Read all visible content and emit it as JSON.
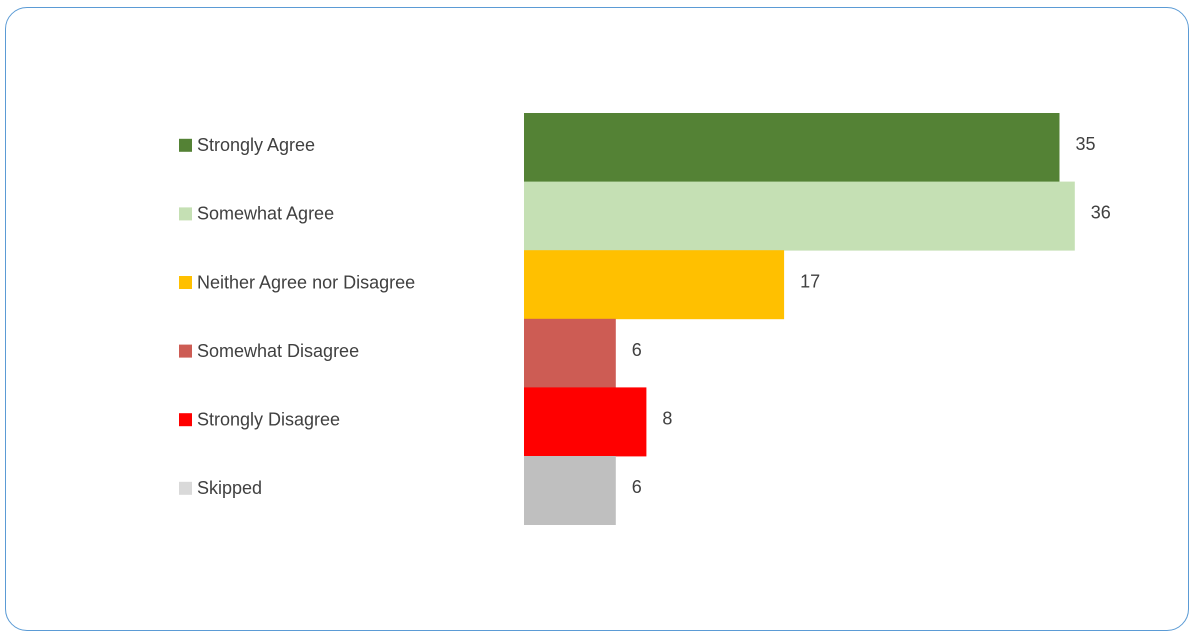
{
  "chart_data": {
    "type": "bar",
    "orientation": "horizontal",
    "title": "",
    "xlabel": "",
    "ylabel": "",
    "categories": [
      "Strongly Agree",
      "Somewhat Agree",
      "Neither Agree nor Disagree",
      "Somewhat Disagree",
      "Strongly Disagree",
      "Skipped"
    ],
    "values": [
      35,
      36,
      17,
      6,
      8,
      6
    ],
    "colors": [
      "#548235",
      "#c5e0b4",
      "#ffc000",
      "#cd5c54",
      "#ff0000",
      "#bfbfbf"
    ],
    "legend_colors": [
      "#548235",
      "#c5e0b4",
      "#ffc000",
      "#cd5c54",
      "#ff0000",
      "#d9d9d9"
    ],
    "data_labels": [
      "35",
      "36",
      "17",
      "6",
      "8",
      "6"
    ],
    "grid": false,
    "legend": "left"
  },
  "frame": {
    "border_color": "#5b9bd5"
  }
}
